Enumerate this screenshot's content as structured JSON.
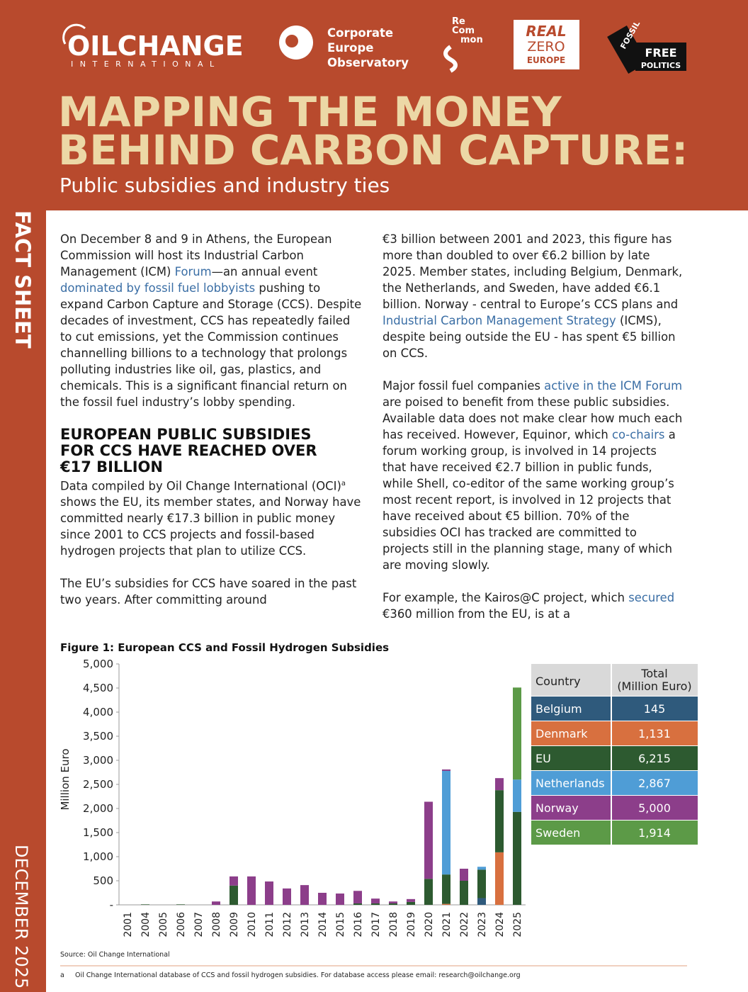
{
  "logos": {
    "oilchange": "OILCHANGE",
    "oilchange_sub": "INTERNATIONAL",
    "ceo": [
      "Corporate",
      "Europe",
      "Observatory"
    ],
    "recommon": [
      "Re",
      "Com",
      "mon"
    ],
    "realzero": [
      "REAL",
      "ZERO",
      "EUROPE"
    ],
    "fossilfree": [
      "FOSSIL",
      "FREE",
      "POLITICS"
    ]
  },
  "header": {
    "title": [
      "MAPPING THE MONEY",
      "BEHIND CARBON CAPTURE:"
    ],
    "subtitle": "Public subsidies and industry ties"
  },
  "sidebar": {
    "label": "FACT SHEET",
    "date": "DECEMBER 2025"
  },
  "body": {
    "columns": [
      [
        {
          "type": "p",
          "segments": [
            {
              "text": "On December 8 and 9 in Athens, the European Commission will host its Industrial Carbon Management (ICM) "
            },
            {
              "text": "Forum",
              "link": true
            },
            {
              "text": "—an annual event "
            },
            {
              "text": "dominated by fossil fuel lobbyists",
              "link": true
            },
            {
              "text": " pushing to expand Carbon Capture and Storage (CCS). Despite decades of investment, CCS has repeatedly failed to cut emissions, yet the Commission continues channelling billions to a technology that prolongs polluting industries like oil, gas, plastics, and chemicals. This is a significant financial return on the fossil fuel industry’s lobby spending."
            }
          ]
        },
        {
          "type": "h",
          "text": "EUROPEAN PUBLIC SUBSIDIES FOR CCS HAVE REACHED OVER €17 BILLION"
        },
        {
          "type": "p",
          "segments": [
            {
              "text": "Data compiled by Oil Change International (OCI)"
            },
            {
              "text": "a",
              "sup": true
            },
            {
              "text": " shows the EU, its member states, and Norway have committed nearly €17.3 billion in public money since 2001 to CCS projects and fossil-based hydrogen projects that plan to utilize CCS."
            }
          ]
        },
        {
          "type": "p",
          "segments": [
            {
              "text": "The EU’s subsidies for CCS have soared in the past two years. After committing around"
            }
          ]
        }
      ],
      [
        {
          "type": "p",
          "segments": [
            {
              "text": "€3 billion between 2001 and 2023, this figure has more than doubled to over €6.2 billion by late 2025. Member states, including Belgium, Denmark, the Netherlands, and Sweden, have added €6.1 billion. Norway - central to Europe’s CCS plans and "
            },
            {
              "text": "Industrial Carbon Management Strategy",
              "link": true
            },
            {
              "text": " (ICMS), despite being outside the EU - has spent €5 billion on CCS."
            }
          ]
        },
        {
          "type": "p",
          "segments": [
            {
              "text": "Major fossil fuel companies "
            },
            {
              "text": "active in the ICM Forum",
              "link": true
            },
            {
              "text": " are poised to benefit from these public subsidies. Available data does not make clear how much each has received. However, Equinor, which "
            },
            {
              "text": "co-chairs",
              "link": true
            },
            {
              "text": " a forum working group, is involved in 14 projects that have received €2.7 billion in public funds, while Shell, co-editor of the same working group’s most recent report, is involved in 12 projects that have received about €5 billion. 70% of the subsidies OCI has tracked are committed to projects still in the planning stage, many of which are moving slowly."
            }
          ]
        },
        {
          "type": "p",
          "segments": [
            {
              "text": "For example, the Kairos@C project, which "
            },
            {
              "text": "secured",
              "link": true
            },
            {
              "text": " €360 million from the EU, is at a"
            }
          ]
        }
      ]
    ]
  },
  "chart_data": {
    "type": "stacked_bar",
    "title": "Figure 1: European CCS and Fossil Hydrogen Subsidies",
    "y_label": "Million Euro",
    "categories": [
      "2001",
      "2004",
      "2005",
      "2006",
      "2007",
      "2008",
      "2009",
      "2010",
      "2011",
      "2012",
      "2013",
      "2014",
      "2015",
      "2016",
      "2017",
      "2018",
      "2019",
      "2020",
      "2021",
      "2022",
      "2023",
      "2024",
      "2025"
    ],
    "series": [
      {
        "name": "Belgium",
        "color": "#2f5a7c",
        "values": [
          null,
          null,
          null,
          null,
          null,
          null,
          null,
          null,
          null,
          null,
          null,
          null,
          null,
          null,
          null,
          null,
          null,
          null,
          null,
          null,
          140,
          null,
          null
        ]
      },
      {
        "name": "Denmark",
        "color": "#d8703f",
        "values": [
          null,
          null,
          null,
          null,
          null,
          null,
          null,
          null,
          null,
          null,
          null,
          null,
          null,
          null,
          null,
          null,
          null,
          null,
          20,
          null,
          null,
          1090,
          null
        ]
      },
      {
        "name": "EU",
        "color": "#2d5a30",
        "values": [
          null,
          10,
          null,
          10,
          null,
          null,
          400,
          null,
          null,
          null,
          null,
          null,
          null,
          30,
          30,
          30,
          60,
          540,
          610,
          500,
          590,
          1290,
          1930
        ]
      },
      {
        "name": "Netherlands",
        "color": "#4f9dd6",
        "values": [
          null,
          null,
          null,
          null,
          null,
          null,
          null,
          null,
          null,
          null,
          null,
          null,
          null,
          null,
          null,
          null,
          null,
          null,
          2150,
          null,
          60,
          null,
          670
        ]
      },
      {
        "name": "Norway",
        "color": "#8c3e8a",
        "values": [
          null,
          null,
          null,
          null,
          null,
          70,
          190,
          590,
          485,
          340,
          410,
          250,
          235,
          260,
          100,
          40,
          60,
          1600,
          30,
          250,
          null,
          250,
          null
        ]
      },
      {
        "name": "Sweden",
        "color": "#5c9a47",
        "values": [
          null,
          null,
          null,
          null,
          null,
          null,
          null,
          null,
          null,
          null,
          null,
          null,
          null,
          null,
          null,
          null,
          null,
          null,
          null,
          null,
          null,
          null,
          1910
        ]
      }
    ],
    "ylim": [
      0,
      5000
    ],
    "yticks": [
      {
        "value": 0,
        "label": "-"
      },
      500,
      {
        "value": 1000,
        "label": "1,000"
      },
      {
        "value": 1500,
        "label": "1,500"
      },
      {
        "value": 2000,
        "label": "2,000"
      },
      {
        "value": 2500,
        "label": "2,500"
      },
      {
        "value": 3000,
        "label": "3,000"
      },
      {
        "value": 3500,
        "label": "3,500"
      },
      {
        "value": 4000,
        "label": "4,000"
      },
      {
        "value": 4500,
        "label": "4,500"
      },
      {
        "value": 5000,
        "label": "5,000"
      }
    ],
    "grid": false
  },
  "table": {
    "headers": [
      "Country",
      [
        "Total",
        "(Million Euro)"
      ]
    ],
    "rows": [
      [
        "Belgium",
        "145"
      ],
      [
        "Denmark",
        "1,131"
      ],
      [
        "EU",
        "6,215"
      ],
      [
        "Netherlands",
        "2,867"
      ],
      [
        "Norway",
        "5,000"
      ],
      [
        "Sweden",
        "1,914"
      ]
    ]
  },
  "source": "Source: Oil Change International",
  "footnote": {
    "mark": "a",
    "text": "Oil Change International database of CCS and fossil hydrogen subsidies. For database access please email: research@oilchange.org"
  }
}
